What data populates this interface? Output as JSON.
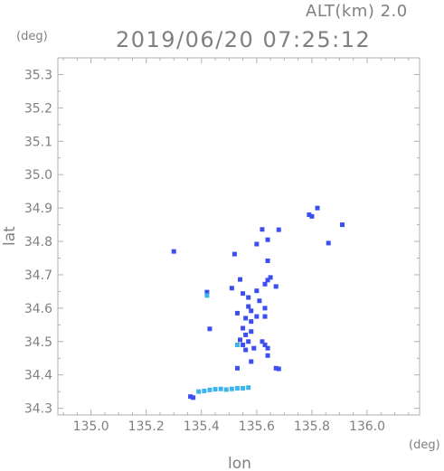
{
  "chart_data": {
    "type": "scatter",
    "title": "2019/06/20 07:25:12",
    "altitude_label": "ALT(km)  2.0",
    "xlabel": "lon",
    "ylabel": "lat",
    "x_unit": "(deg)",
    "y_unit": "(deg)",
    "xlim": [
      134.88,
      136.19
    ],
    "ylim": [
      34.28,
      35.35
    ],
    "x_ticks": [
      135.0,
      135.2,
      135.4,
      135.6,
      135.8,
      136.0
    ],
    "x_tick_labels": [
      "135.0",
      "135.2",
      "135.4",
      "135.6",
      "135.8",
      "136.0"
    ],
    "y_ticks": [
      34.3,
      34.4,
      34.5,
      34.6,
      34.7,
      34.8,
      34.9,
      35.0,
      35.1,
      35.2,
      35.3
    ],
    "y_tick_labels": [
      "34.3",
      "34.4",
      "34.5",
      "34.6",
      "34.7",
      "34.8",
      "34.9",
      "35.0",
      "35.1",
      "35.2",
      "35.3"
    ],
    "grid": false,
    "colors": {
      "axis": "#b0b0b0",
      "text": "#808080",
      "echo_strong": "#3c4ef0",
      "echo_medium": "#5a6cf5",
      "echo_light": "#3fb4ec"
    },
    "series": [
      {
        "color_key": "echo_strong",
        "points": [
          [
            135.3,
            34.77
          ],
          [
            135.43,
            34.538
          ],
          [
            135.52,
            34.762
          ],
          [
            135.6,
            34.792
          ],
          [
            135.62,
            34.836
          ],
          [
            135.64,
            34.742
          ],
          [
            135.54,
            34.686
          ],
          [
            135.55,
            34.644
          ],
          [
            135.57,
            34.632
          ],
          [
            135.6,
            34.652
          ],
          [
            135.61,
            34.622
          ],
          [
            135.63,
            34.672
          ],
          [
            135.64,
            34.684
          ],
          [
            135.65,
            34.692
          ],
          [
            135.67,
            34.665
          ],
          [
            135.57,
            34.605
          ],
          [
            135.58,
            34.592
          ],
          [
            135.53,
            34.585
          ],
          [
            135.56,
            34.57
          ],
          [
            135.58,
            34.56
          ],
          [
            135.6,
            34.575
          ],
          [
            135.63,
            34.6
          ],
          [
            135.63,
            34.575
          ],
          [
            135.55,
            34.54
          ],
          [
            135.56,
            34.52
          ],
          [
            135.58,
            34.53
          ],
          [
            135.54,
            34.505
          ],
          [
            135.55,
            34.49
          ],
          [
            135.57,
            34.5
          ],
          [
            135.56,
            34.475
          ],
          [
            135.59,
            34.48
          ],
          [
            135.62,
            34.5
          ],
          [
            135.63,
            34.49
          ],
          [
            135.64,
            34.48
          ],
          [
            135.64,
            34.458
          ],
          [
            135.58,
            34.44
          ],
          [
            135.53,
            34.42
          ],
          [
            135.67,
            34.42
          ],
          [
            135.68,
            34.418
          ],
          [
            135.79,
            34.88
          ],
          [
            135.8,
            34.875
          ],
          [
            135.82,
            34.9
          ],
          [
            135.91,
            34.85
          ],
          [
            135.86,
            34.795
          ],
          [
            135.68,
            34.835
          ],
          [
            135.64,
            34.805
          ],
          [
            135.36,
            34.335
          ],
          [
            135.37,
            34.332
          ],
          [
            135.42,
            34.648
          ],
          [
            135.51,
            34.66
          ]
        ]
      },
      {
        "color_key": "echo_light",
        "points": [
          [
            135.42,
            34.638
          ],
          [
            135.53,
            34.49
          ],
          [
            135.39,
            34.35
          ],
          [
            135.41,
            34.352
          ],
          [
            135.43,
            34.355
          ],
          [
            135.45,
            34.357
          ],
          [
            135.47,
            34.358
          ],
          [
            135.49,
            34.356
          ],
          [
            135.51,
            34.358
          ],
          [
            135.53,
            34.36
          ],
          [
            135.55,
            34.36
          ],
          [
            135.57,
            34.362
          ]
        ]
      }
    ]
  }
}
